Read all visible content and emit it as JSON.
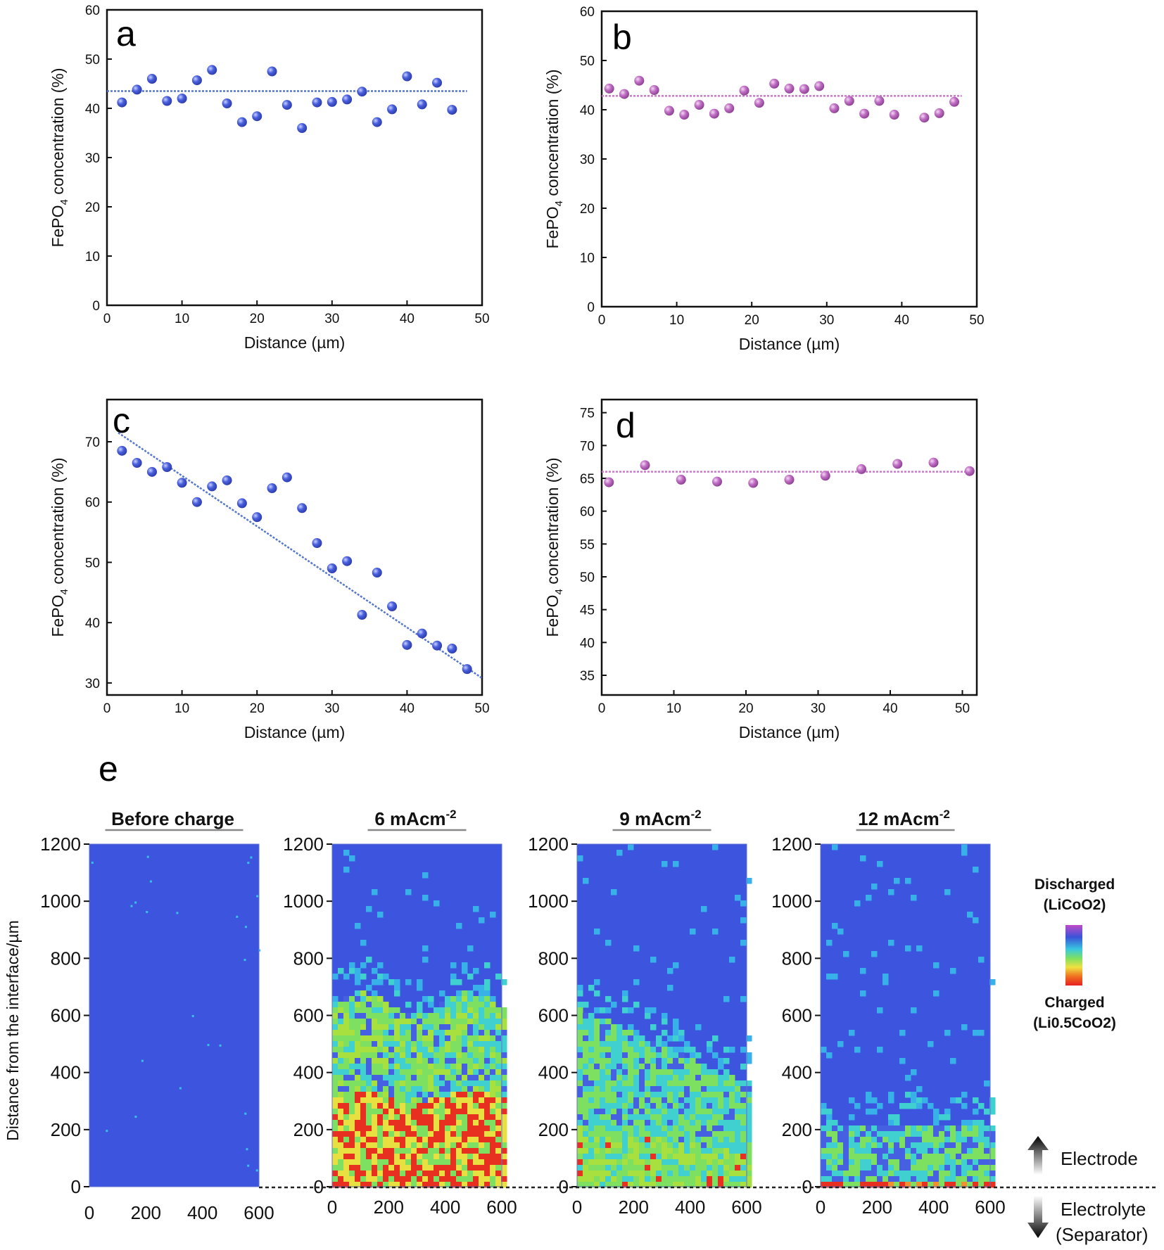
{
  "chart_data": [
    {
      "panel": "a",
      "type": "scatter",
      "xlabel": "Distance (µm)",
      "ylabel": "FePO4 concentration (%)",
      "xlim": [
        0,
        50
      ],
      "ylim": [
        0,
        60
      ],
      "xticks": [
        0,
        10,
        20,
        30,
        40,
        50
      ],
      "yticks": [
        0,
        10,
        20,
        30,
        40,
        50,
        60
      ],
      "point_color": "#4a5fdc",
      "fit_color": "#5577cc",
      "fit_line": {
        "x": [
          0,
          48
        ],
        "y": [
          43.5,
          43.5
        ]
      },
      "series": [
        {
          "x": [
            2,
            4,
            6,
            8,
            10,
            12,
            14,
            16,
            18,
            20,
            22,
            24,
            26,
            28,
            30,
            32,
            34,
            36,
            38,
            40,
            42,
            44,
            46
          ],
          "y": [
            41.2,
            43.8,
            46.0,
            41.5,
            42.0,
            45.7,
            47.8,
            41.0,
            37.2,
            38.4,
            47.5,
            40.7,
            36.0,
            41.2,
            41.3,
            41.8,
            43.4,
            37.2,
            39.8,
            46.5,
            40.8,
            45.2,
            39.7
          ]
        }
      ]
    },
    {
      "panel": "b",
      "type": "scatter",
      "xlabel": "Distance (µm)",
      "ylabel": "FePO4 concentration (%)",
      "xlim": [
        0,
        50
      ],
      "ylim": [
        0,
        60
      ],
      "xticks": [
        0,
        10,
        20,
        30,
        40,
        50
      ],
      "yticks": [
        0,
        10,
        20,
        30,
        40,
        50,
        60
      ],
      "point_color": "#c070c4",
      "fit_color": "#cc77cc",
      "fit_line": {
        "x": [
          0,
          48
        ],
        "y": [
          42.8,
          42.8
        ]
      },
      "series": [
        {
          "x": [
            1,
            3,
            5,
            7,
            9,
            11,
            13,
            15,
            17,
            19,
            21,
            23,
            25,
            27,
            29,
            31,
            33,
            35,
            37,
            39,
            43,
            45,
            47
          ],
          "y": [
            44.3,
            43.2,
            45.9,
            44.0,
            39.8,
            39.0,
            41.0,
            39.2,
            40.3,
            43.9,
            41.4,
            45.3,
            44.3,
            44.2,
            44.8,
            40.3,
            41.8,
            39.2,
            41.8,
            39.0,
            38.4,
            39.3,
            41.6
          ]
        }
      ]
    },
    {
      "panel": "c",
      "type": "scatter",
      "xlabel": "Distance (µm)",
      "ylabel": "FePO4 concentration (%)",
      "xlim": [
        0,
        50
      ],
      "ylim": [
        28,
        77
      ],
      "xticks": [
        0,
        10,
        20,
        30,
        40,
        50
      ],
      "yticks": [
        30,
        40,
        50,
        60,
        70
      ],
      "point_color": "#4a5fdc",
      "fit_color": "#5577cc",
      "fit_line": {
        "x": [
          1.5,
          50
        ],
        "y": [
          71.5,
          30.8
        ]
      },
      "series": [
        {
          "x": [
            2,
            4,
            6,
            8,
            10,
            12,
            14,
            16,
            18,
            20,
            22,
            24,
            26,
            28,
            30,
            32,
            34,
            36,
            38,
            40,
            42,
            44,
            46,
            48
          ],
          "y": [
            68.5,
            66.5,
            65.0,
            65.8,
            63.2,
            60.0,
            62.6,
            63.6,
            59.8,
            57.5,
            62.3,
            64.1,
            59.0,
            53.2,
            49.0,
            50.2,
            41.3,
            48.3,
            42.7,
            36.3,
            38.2,
            36.2,
            35.7,
            32.3
          ]
        }
      ]
    },
    {
      "panel": "d",
      "type": "scatter",
      "xlabel": "Distance (µm)",
      "ylabel": "FePO4 concentration (%)",
      "xlim": [
        0,
        52
      ],
      "ylim": [
        32,
        77
      ],
      "xticks": [
        0,
        10,
        20,
        30,
        40,
        50
      ],
      "yticks": [
        35,
        40,
        45,
        50,
        55,
        60,
        65,
        70,
        75
      ],
      "point_color": "#c070c4",
      "fit_color": "#cc77cc",
      "fit_line": {
        "x": [
          0,
          51.5
        ],
        "y": [
          66.0,
          66.0
        ]
      },
      "series": [
        {
          "x": [
            1,
            6,
            11,
            16,
            21,
            26,
            31,
            36,
            41,
            46,
            51
          ],
          "y": [
            64.4,
            67.0,
            64.8,
            64.5,
            64.3,
            64.8,
            65.4,
            66.4,
            67.2,
            67.4,
            66.1
          ]
        }
      ]
    },
    {
      "panel": "e",
      "type": "heatmap",
      "ylabel": "Distance from the interface/µm",
      "xlim": [
        0,
        600
      ],
      "ylim": [
        0,
        1200
      ],
      "xticks": [
        0,
        200,
        400,
        600
      ],
      "yticks": [
        0,
        200,
        400,
        600,
        800,
        1000,
        1200
      ],
      "maps": [
        {
          "title": "Before charge",
          "charged_front_um": 0
        },
        {
          "title": "6 mAcm-2",
          "charged_front_um": 650
        },
        {
          "title": "9 mAcm-2",
          "charged_front_um": 500
        },
        {
          "title": "12 mAcm-2",
          "charged_front_um": 230
        }
      ],
      "legend": {
        "top": [
          "Discharged",
          "(LiCoO2)"
        ],
        "bottom": [
          "Charged",
          "(Li0.5CoO2)"
        ],
        "colors": [
          "#c04ac8",
          "#3b53d9",
          "#38c8e0",
          "#7ee060",
          "#f0e040",
          "#f07020",
          "#e82020"
        ]
      },
      "direction_labels": {
        "up": "Electrode",
        "down1": "Electrolyte",
        "down2": "(Separator)"
      }
    }
  ]
}
